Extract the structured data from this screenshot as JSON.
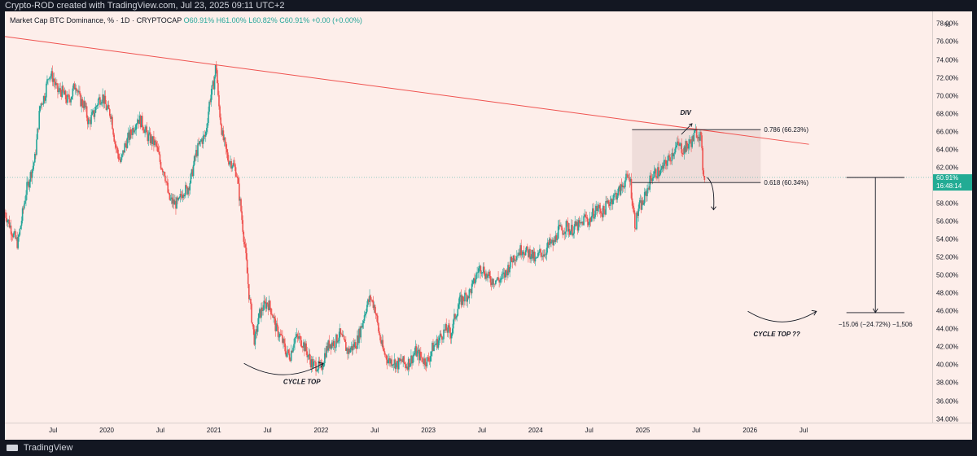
{
  "header": {
    "credit": "Crypto-ROD created with TradingView.com, Jul 23, 2025 09:11 UTC+2"
  },
  "legend": {
    "symbol": "Market Cap BTC Dominance, %",
    "interval": "1D",
    "exchange": "CRYPTOCAP",
    "open": "O60.91%",
    "high": "H61.00%",
    "low": "L60.82%",
    "close": "C60.91%",
    "change": "+0.00 (+0.00%)"
  },
  "price_tag": {
    "value": "60.91%",
    "countdown": "16:48:14"
  },
  "footer": {
    "brand": "TradingView"
  },
  "colors": {
    "background": "#fdeeea",
    "up": "#26a69a",
    "down": "#ef5350",
    "trendline": "#ef5350",
    "box": "#e8d6d3",
    "annotation": "#131722"
  },
  "chart_data": {
    "type": "candlestick",
    "ylabel": "%",
    "ylim": [
      33.6,
      79.4
    ],
    "y_ticks": [
      "78.00%",
      "76.00%",
      "74.00%",
      "72.00%",
      "70.00%",
      "68.00%",
      "66.00%",
      "64.00%",
      "62.00%",
      "60.00%",
      "58.00%",
      "56.00%",
      "54.00%",
      "52.00%",
      "50.00%",
      "48.00%",
      "46.00%",
      "44.00%",
      "42.00%",
      "40.00%",
      "38.00%",
      "36.00%",
      "34.00%"
    ],
    "y_tick_values": [
      78,
      76,
      74,
      72,
      70,
      68,
      66,
      64,
      62,
      60,
      58,
      56,
      54,
      52,
      50,
      48,
      46,
      44,
      42,
      40,
      38,
      36,
      34
    ],
    "x_ticks": [
      {
        "label": "Jul",
        "t": 2019.5
      },
      {
        "label": "2020",
        "t": 2020.0
      },
      {
        "label": "Jul",
        "t": 2020.5
      },
      {
        "label": "2021",
        "t": 2021.0
      },
      {
        "label": "Jul",
        "t": 2021.5
      },
      {
        "label": "2022",
        "t": 2022.0
      },
      {
        "label": "Jul",
        "t": 2022.5
      },
      {
        "label": "2023",
        "t": 2023.0
      },
      {
        "label": "Jul",
        "t": 2023.5
      },
      {
        "label": "2024",
        "t": 2024.0
      },
      {
        "label": "Jul",
        "t": 2024.5
      },
      {
        "label": "2025",
        "t": 2025.0
      },
      {
        "label": "Jul",
        "t": 2025.5
      },
      {
        "label": "2026",
        "t": 2026.0
      },
      {
        "label": "Jul",
        "t": 2026.5
      }
    ],
    "xlim": [
      2019.05,
      2027.7
    ],
    "series_path": [
      [
        2019.05,
        57.0
      ],
      [
        2019.13,
        54.5
      ],
      [
        2019.17,
        53.5
      ],
      [
        2019.25,
        59.5
      ],
      [
        2019.33,
        63.0
      ],
      [
        2019.38,
        69.0
      ],
      [
        2019.42,
        70.0
      ],
      [
        2019.46,
        72.5
      ],
      [
        2019.5,
        72.0
      ],
      [
        2019.54,
        70.5
      ],
      [
        2019.58,
        70.5
      ],
      [
        2019.63,
        69.5
      ],
      [
        2019.67,
        70.0
      ],
      [
        2019.71,
        71.5
      ],
      [
        2019.75,
        69.5
      ],
      [
        2019.79,
        69.0
      ],
      [
        2019.83,
        67.0
      ],
      [
        2019.88,
        68.0
      ],
      [
        2019.92,
        69.5
      ],
      [
        2019.96,
        70.0
      ],
      [
        2020.0,
        68.5
      ],
      [
        2020.04,
        68.0
      ],
      [
        2020.08,
        64.5
      ],
      [
        2020.13,
        62.5
      ],
      [
        2020.17,
        64.5
      ],
      [
        2020.21,
        65.5
      ],
      [
        2020.25,
        66.5
      ],
      [
        2020.29,
        67.5
      ],
      [
        2020.33,
        67.0
      ],
      [
        2020.38,
        65.5
      ],
      [
        2020.42,
        65.0
      ],
      [
        2020.46,
        64.5
      ],
      [
        2020.5,
        62.5
      ],
      [
        2020.54,
        61.5
      ],
      [
        2020.58,
        58.5
      ],
      [
        2020.63,
        58.0
      ],
      [
        2020.67,
        58.0
      ],
      [
        2020.71,
        59.5
      ],
      [
        2020.75,
        59.5
      ],
      [
        2020.79,
        61.0
      ],
      [
        2020.83,
        63.5
      ],
      [
        2020.88,
        65.0
      ],
      [
        2020.92,
        65.5
      ],
      [
        2020.96,
        69.5
      ],
      [
        2021.0,
        71.5
      ],
      [
        2021.02,
        73.7
      ],
      [
        2021.04,
        69.5
      ],
      [
        2021.08,
        65.5
      ],
      [
        2021.13,
        63.0
      ],
      [
        2021.17,
        62.5
      ],
      [
        2021.21,
        61.5
      ],
      [
        2021.25,
        57.5
      ],
      [
        2021.29,
        53.0
      ],
      [
        2021.33,
        47.5
      ],
      [
        2021.38,
        42.5
      ],
      [
        2021.42,
        45.5
      ],
      [
        2021.46,
        46.5
      ],
      [
        2021.5,
        47.0
      ],
      [
        2021.54,
        46.0
      ],
      [
        2021.58,
        44.0
      ],
      [
        2021.63,
        43.0
      ],
      [
        2021.67,
        41.5
      ],
      [
        2021.71,
        41.0
      ],
      [
        2021.75,
        43.0
      ],
      [
        2021.79,
        43.0
      ],
      [
        2021.83,
        42.5
      ],
      [
        2021.88,
        41.0
      ],
      [
        2021.92,
        40.0
      ],
      [
        2021.96,
        40.0
      ],
      [
        2022.0,
        39.5
      ],
      [
        2022.04,
        41.5
      ],
      [
        2022.08,
        42.5
      ],
      [
        2022.13,
        42.5
      ],
      [
        2022.17,
        43.5
      ],
      [
        2022.21,
        42.5
      ],
      [
        2022.25,
        41.5
      ],
      [
        2022.29,
        42.0
      ],
      [
        2022.33,
        42.5
      ],
      [
        2022.38,
        44.5
      ],
      [
        2022.42,
        46.5
      ],
      [
        2022.46,
        47.5
      ],
      [
        2022.5,
        46.5
      ],
      [
        2022.54,
        43.5
      ],
      [
        2022.58,
        41.5
      ],
      [
        2022.63,
        40.5
      ],
      [
        2022.67,
        40.5
      ],
      [
        2022.71,
        40.0
      ],
      [
        2022.75,
        40.5
      ],
      [
        2022.79,
        40.0
      ],
      [
        2022.83,
        40.5
      ],
      [
        2022.88,
        41.5
      ],
      [
        2022.92,
        41.0
      ],
      [
        2022.96,
        40.5
      ],
      [
        2023.0,
        40.5
      ],
      [
        2023.04,
        42.0
      ],
      [
        2023.08,
        42.5
      ],
      [
        2023.13,
        43.5
      ],
      [
        2023.17,
        44.0
      ],
      [
        2023.21,
        43.5
      ],
      [
        2023.25,
        45.5
      ],
      [
        2023.29,
        47.0
      ],
      [
        2023.33,
        47.5
      ],
      [
        2023.38,
        48.0
      ],
      [
        2023.42,
        49.0
      ],
      [
        2023.46,
        50.5
      ],
      [
        2023.5,
        51.0
      ],
      [
        2023.54,
        50.0
      ],
      [
        2023.58,
        49.5
      ],
      [
        2023.63,
        49.5
      ],
      [
        2023.67,
        49.5
      ],
      [
        2023.71,
        50.0
      ],
      [
        2023.75,
        51.0
      ],
      [
        2023.79,
        52.0
      ],
      [
        2023.83,
        52.5
      ],
      [
        2023.88,
        53.0
      ],
      [
        2023.92,
        52.5
      ],
      [
        2023.96,
        52.5
      ],
      [
        2024.0,
        51.5
      ],
      [
        2024.04,
        52.5
      ],
      [
        2024.08,
        52.5
      ],
      [
        2024.13,
        53.5
      ],
      [
        2024.17,
        53.5
      ],
      [
        2024.21,
        55.0
      ],
      [
        2024.25,
        55.0
      ],
      [
        2024.29,
        55.5
      ],
      [
        2024.33,
        55.0
      ],
      [
        2024.38,
        55.5
      ],
      [
        2024.42,
        55.5
      ],
      [
        2024.46,
        56.5
      ],
      [
        2024.5,
        56.0
      ],
      [
        2024.54,
        57.0
      ],
      [
        2024.58,
        57.5
      ],
      [
        2024.63,
        57.0
      ],
      [
        2024.67,
        58.0
      ],
      [
        2024.71,
        58.5
      ],
      [
        2024.75,
        59.0
      ],
      [
        2024.79,
        59.5
      ],
      [
        2024.83,
        60.5
      ],
      [
        2024.88,
        61.0
      ],
      [
        2024.9,
        58.5
      ],
      [
        2024.93,
        55.5
      ],
      [
        2024.96,
        57.5
      ],
      [
        2025.0,
        58.0
      ],
      [
        2025.04,
        59.5
      ],
      [
        2025.08,
        61.0
      ],
      [
        2025.13,
        61.5
      ],
      [
        2025.17,
        61.5
      ],
      [
        2025.21,
        62.5
      ],
      [
        2025.25,
        63.0
      ],
      [
        2025.29,
        64.0
      ],
      [
        2025.33,
        64.5
      ],
      [
        2025.38,
        64.0
      ],
      [
        2025.42,
        64.5
      ],
      [
        2025.46,
        65.0
      ],
      [
        2025.5,
        66.0
      ],
      [
        2025.54,
        65.5
      ],
      [
        2025.56,
        62.0
      ],
      [
        2025.58,
        60.9
      ]
    ],
    "trendline": {
      "from": [
        2019.05,
        76.6
      ],
      "to": [
        2026.55,
        64.6
      ]
    },
    "fib_levels": [
      {
        "label": "0.786 (66.23%)",
        "value": 66.23
      },
      {
        "label": "0.618 (60.34%)",
        "value": 60.34
      }
    ],
    "fib_range": [
      2024.9,
      2026.1
    ],
    "current_value": 60.91,
    "measure": {
      "from": 60.91,
      "to": 45.85,
      "t_range": [
        2026.9,
        2027.44
      ],
      "label": "−15.06 (−24.72%) −1,506"
    },
    "annotations": [
      {
        "text": "DIV",
        "t": 2025.4,
        "y": 67.9
      },
      {
        "text": "CYCLE TOP",
        "t": 2021.82,
        "y": 37.9
      },
      {
        "text": "CYCLE TOP ??",
        "t": 2026.25,
        "y": 43.2
      }
    ]
  }
}
